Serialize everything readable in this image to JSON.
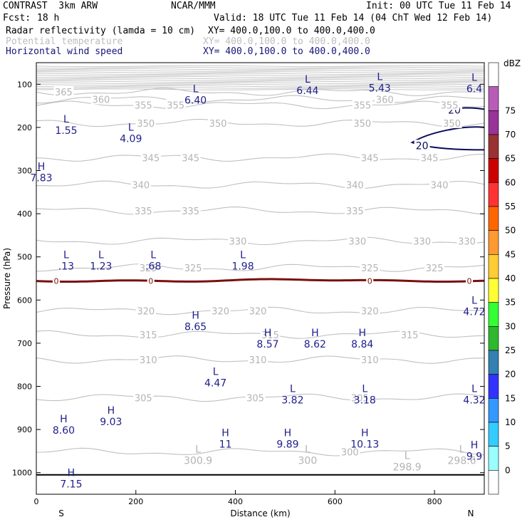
{
  "header": {
    "model": "CONTRAST  3km ARW",
    "org": "NCAR/MMM",
    "init": "Init: 00 UTC Tue 11 Feb 14",
    "fcst_label": "Fcst:",
    "fcst_value": "18 h",
    "valid": "Valid: 18 UTC Tue 11 Feb 14 (04 ChT Wed 12 Feb 14)",
    "fields": [
      {
        "name": "Radar reflectivity (lamda = 10 cm)",
        "xy": "XY= 400.0,100.0 to 400.0,400.0",
        "color": "#000000"
      },
      {
        "name": "Potential temperature",
        "xy": "XY= 400.0,100.0 to 400.0,400.0",
        "color": "#bdbdbd"
      },
      {
        "name": "Horizontal wind speed",
        "xy": "XY= 400.0,100.0 to 400.0,400.0",
        "color": "#141478"
      }
    ]
  },
  "chart_data": {
    "type": "cross-section contour",
    "xlabel": "Distance (km)",
    "ylabel": "Pressure (hPa)",
    "xlim": [
      0,
      900
    ],
    "ylim": [
      1050,
      50
    ],
    "x_ticks": [
      0,
      200,
      400,
      600,
      800
    ],
    "y_ticks": [
      100,
      200,
      300,
      400,
      500,
      600,
      700,
      800,
      900,
      1000
    ],
    "x_end_labels": {
      "left": "S",
      "right": "N"
    },
    "theta_levels": [
      {
        "label": "365",
        "p": 118,
        "labels_x": [
          55
        ]
      },
      {
        "label": "360",
        "p": 135,
        "labels_x": [
          130,
          700
        ]
      },
      {
        "label": "355",
        "p": 148,
        "labels_x": [
          215,
          280,
          655,
          830
        ]
      },
      {
        "label": "350",
        "p": 190,
        "labels_x": [
          220,
          365,
          655,
          835
        ]
      },
      {
        "label": "345",
        "p": 270,
        "labels_x": [
          230,
          310,
          670,
          790
        ]
      },
      {
        "label": "340",
        "p": 333,
        "labels_x": [
          210,
          640,
          810
        ]
      },
      {
        "label": "335",
        "p": 393,
        "labels_x": [
          215,
          310,
          640
        ]
      },
      {
        "label": "330",
        "p": 463,
        "labels_x": [
          405,
          645,
          775,
          865
        ]
      },
      {
        "label": "325",
        "p": 525,
        "labels_x": [
          225,
          315,
          670,
          800
        ]
      },
      {
        "label": "320",
        "p": 625,
        "labels_x": [
          220,
          370,
          445,
          670
        ]
      },
      {
        "label": "315",
        "p": 680,
        "labels_x": [
          225,
          470,
          750
        ]
      },
      {
        "label": "310",
        "p": 738,
        "labels_x": [
          225,
          445,
          670
        ]
      },
      {
        "label": "305",
        "p": 826,
        "labels_x": [
          215,
          440,
          650
        ]
      },
      {
        "label": "300",
        "p": 952,
        "labels_x": [
          630
        ]
      }
    ],
    "surface_pressure_hpa": 1005,
    "melting_level": {
      "label": "0",
      "label_x": [
        40,
        230,
        670,
        870
      ],
      "p": 556
    },
    "wind_speed_contours": [
      {
        "label": "20",
        "x_km": [
          840,
          775
        ]
      }
    ],
    "extrema": [
      {
        "type": "L",
        "value": "6.44",
        "x": 545,
        "p": 88
      },
      {
        "type": "L",
        "value": "5.43",
        "x": 690,
        "p": 82
      },
      {
        "type": "L",
        "value": "6.4",
        "x": 880,
        "p": 84
      },
      {
        "type": "L",
        "value": "6.40",
        "x": 320,
        "p": 110
      },
      {
        "type": "L",
        "value": "1.55",
        "x": 60,
        "p": 180
      },
      {
        "type": "L",
        "value": "4.09",
        "x": 190,
        "p": 199
      },
      {
        "type": "H",
        "value": "7.83",
        "x": 10,
        "p": 290
      },
      {
        "type": "L",
        "value": ".13",
        "x": 60,
        "p": 495
      },
      {
        "type": "L",
        "value": "1.23",
        "x": 130,
        "p": 495
      },
      {
        "type": "L",
        "value": ".68",
        "x": 235,
        "p": 495
      },
      {
        "type": "L",
        "value": "1.98",
        "x": 415,
        "p": 495
      },
      {
        "type": "L",
        "value": "4.72",
        "x": 880,
        "p": 600
      },
      {
        "type": "H",
        "value": "8.65",
        "x": 320,
        "p": 635
      },
      {
        "type": "H",
        "value": "8.57",
        "x": 465,
        "p": 675
      },
      {
        "type": "H",
        "value": "8.62",
        "x": 560,
        "p": 675
      },
      {
        "type": "H",
        "value": "8.84",
        "x": 655,
        "p": 675
      },
      {
        "type": "L",
        "value": "4.47",
        "x": 360,
        "p": 765
      },
      {
        "type": "L",
        "value": "3.82",
        "x": 515,
        "p": 805
      },
      {
        "type": "L",
        "value": "3.18",
        "x": 660,
        "p": 805
      },
      {
        "type": "L",
        "value": "4.32",
        "x": 880,
        "p": 805
      },
      {
        "type": "H",
        "value": "9.03",
        "x": 150,
        "p": 855
      },
      {
        "type": "H",
        "value": "8.60",
        "x": 55,
        "p": 875
      },
      {
        "type": "H",
        "value": "11",
        "x": 380,
        "p": 907
      },
      {
        "type": "H",
        "value": "9.89",
        "x": 505,
        "p": 907
      },
      {
        "type": "H",
        "value": "10.13",
        "x": 660,
        "p": 907
      },
      {
        "type": "H",
        "value": "9.9",
        "x": 880,
        "p": 935
      },
      {
        "type": "H",
        "value": "7.15",
        "x": 70,
        "p": 1000
      }
    ],
    "theta_extrema": [
      {
        "type": "L",
        "value": "300.9",
        "x": 325,
        "p": 963
      },
      {
        "type": "L",
        "value": "300",
        "x": 545,
        "p": 963
      },
      {
        "type": "L",
        "value": "298.9",
        "x": 745,
        "p": 978
      },
      {
        "type": "L",
        "value": "298.6",
        "x": 855,
        "p": 963
      }
    ],
    "colorbar": {
      "unit": "dBZ",
      "levels": [
        0,
        5,
        10,
        15,
        20,
        25,
        30,
        35,
        40,
        45,
        50,
        55,
        60,
        65,
        70,
        75
      ],
      "colors": [
        "#ffffff",
        "#99ffff",
        "#33ccff",
        "#3399ff",
        "#3333ff",
        "#3380b3",
        "#2eb82e",
        "#33ff33",
        "#ffff33",
        "#ffcc33",
        "#ff9933",
        "#ff6600",
        "#ff3333",
        "#cc0000",
        "#993333",
        "#993399",
        "#b85cb8",
        "#ffffff"
      ]
    }
  }
}
